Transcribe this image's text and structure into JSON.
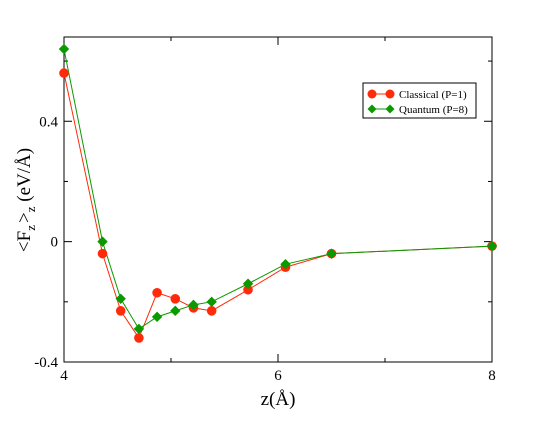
{
  "chart_data": {
    "type": "line",
    "title": "",
    "xlabel": "z(Å)",
    "ylabel": "<F",
    "ylabel_sub1": "z",
    "ylabel_mid": ">",
    "ylabel_sub2": "z",
    "ylabel_unit": " (eV/Å)",
    "xlim": [
      4,
      8
    ],
    "ylim": [
      -0.4,
      0.68
    ],
    "x_ticks": [
      4,
      6,
      8
    ],
    "x_tick_labels": [
      "4",
      "6",
      "8"
    ],
    "y_ticks": [
      -0.4,
      0,
      0.4
    ],
    "y_tick_labels": [
      "-0.4",
      "0",
      "0.4"
    ],
    "grid": false,
    "legend_position": "top-right",
    "series": [
      {
        "name": "Classical (P=1)",
        "color": "#ff2a0a",
        "marker": "circle",
        "x": [
          4.0,
          4.36,
          4.53,
          4.7,
          4.87,
          5.04,
          5.21,
          5.38,
          5.72,
          6.07,
          6.5,
          8.0
        ],
        "y": [
          0.56,
          -0.04,
          -0.23,
          -0.32,
          -0.17,
          -0.19,
          -0.22,
          -0.23,
          -0.16,
          -0.085,
          -0.04,
          -0.015
        ]
      },
      {
        "name": "Quantum (P=8)",
        "color": "#0a9a00",
        "marker": "diamond",
        "x": [
          4.0,
          4.36,
          4.53,
          4.7,
          4.87,
          5.04,
          5.21,
          5.38,
          5.72,
          6.07,
          6.5,
          8.0
        ],
        "y": [
          0.64,
          0.0,
          -0.19,
          -0.29,
          -0.25,
          -0.23,
          -0.21,
          -0.2,
          -0.14,
          -0.075,
          -0.04,
          -0.015
        ]
      }
    ]
  }
}
